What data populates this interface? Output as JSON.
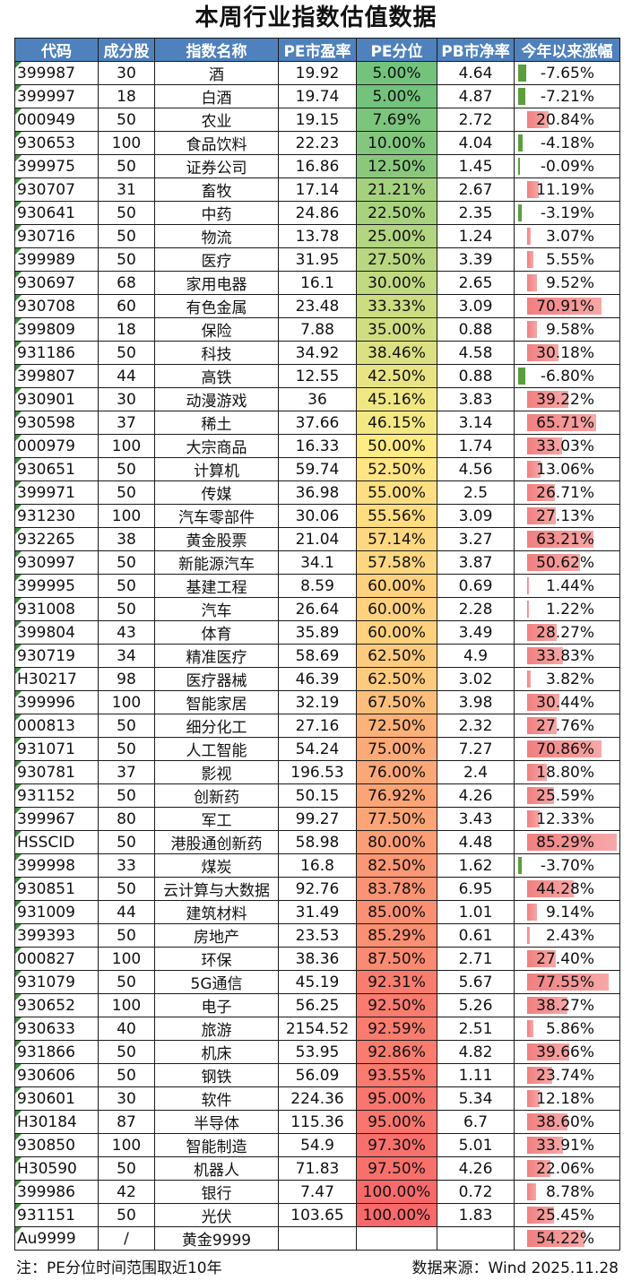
{
  "title": "本周行业指数估值数据",
  "headers": [
    "代码",
    "成分股",
    "指数名称",
    "PE市盈率",
    "PE分位",
    "PB市净率",
    "今年以来涨幅"
  ],
  "rows": [
    {
      "code": "399987",
      "count": "30",
      "name": "酒",
      "pe": "19.92",
      "pct": "5.00%",
      "pb": "4.64",
      "ytd": "-7.65%",
      "pct_value": 5.0,
      "ytd_value": -7.65
    },
    {
      "code": "399997",
      "count": "18",
      "name": "白酒",
      "pe": "19.74",
      "pct": "5.00%",
      "pb": "4.87",
      "ytd": "-7.21%",
      "pct_value": 5.0,
      "ytd_value": -7.21
    },
    {
      "code": "000949",
      "count": "50",
      "name": "农业",
      "pe": "19.15",
      "pct": "7.69%",
      "pb": "2.72",
      "ytd": "20.84%",
      "pct_value": 7.69,
      "ytd_value": 20.84
    },
    {
      "code": "930653",
      "count": "100",
      "name": "食品饮料",
      "pe": "22.23",
      "pct": "10.00%",
      "pb": "4.04",
      "ytd": "-4.18%",
      "pct_value": 10.0,
      "ytd_value": -4.18
    },
    {
      "code": "399975",
      "count": "50",
      "name": "证券公司",
      "pe": "16.86",
      "pct": "12.50%",
      "pb": "1.45",
      "ytd": "-0.09%",
      "pct_value": 12.5,
      "ytd_value": -0.09
    },
    {
      "code": "930707",
      "count": "31",
      "name": "畜牧",
      "pe": "17.14",
      "pct": "21.21%",
      "pb": "2.67",
      "ytd": "11.19%",
      "pct_value": 21.21,
      "ytd_value": 11.19
    },
    {
      "code": "930641",
      "count": "50",
      "name": "中药",
      "pe": "24.86",
      "pct": "22.50%",
      "pb": "2.35",
      "ytd": "-3.19%",
      "pct_value": 22.5,
      "ytd_value": -3.19
    },
    {
      "code": "930716",
      "count": "50",
      "name": "物流",
      "pe": "13.78",
      "pct": "25.00%",
      "pb": "1.24",
      "ytd": "3.07%",
      "pct_value": 25.0,
      "ytd_value": 3.07
    },
    {
      "code": "399989",
      "count": "50",
      "name": "医疗",
      "pe": "31.95",
      "pct": "27.50%",
      "pb": "3.39",
      "ytd": "5.55%",
      "pct_value": 27.5,
      "ytd_value": 5.55
    },
    {
      "code": "930697",
      "count": "68",
      "name": "家用电器",
      "pe": "16.1",
      "pct": "30.00%",
      "pb": "2.65",
      "ytd": "9.52%",
      "pct_value": 30.0,
      "ytd_value": 9.52
    },
    {
      "code": "930708",
      "count": "60",
      "name": "有色金属",
      "pe": "23.48",
      "pct": "33.33%",
      "pb": "3.09",
      "ytd": "70.91%",
      "pct_value": 33.33,
      "ytd_value": 70.91
    },
    {
      "code": "399809",
      "count": "18",
      "name": "保险",
      "pe": "7.88",
      "pct": "35.00%",
      "pb": "0.88",
      "ytd": "9.58%",
      "pct_value": 35.0,
      "ytd_value": 9.58
    },
    {
      "code": "931186",
      "count": "50",
      "name": "科技",
      "pe": "34.92",
      "pct": "38.46%",
      "pb": "4.58",
      "ytd": "30.18%",
      "pct_value": 38.46,
      "ytd_value": 30.18
    },
    {
      "code": "399807",
      "count": "44",
      "name": "高铁",
      "pe": "12.55",
      "pct": "42.50%",
      "pb": "0.88",
      "ytd": "-6.80%",
      "pct_value": 42.5,
      "ytd_value": -6.8
    },
    {
      "code": "930901",
      "count": "30",
      "name": "动漫游戏",
      "pe": "36",
      "pct": "45.16%",
      "pb": "3.83",
      "ytd": "39.22%",
      "pct_value": 45.16,
      "ytd_value": 39.22
    },
    {
      "code": "930598",
      "count": "37",
      "name": "稀土",
      "pe": "37.66",
      "pct": "46.15%",
      "pb": "3.14",
      "ytd": "65.71%",
      "pct_value": 46.15,
      "ytd_value": 65.71
    },
    {
      "code": "000979",
      "count": "100",
      "name": "大宗商品",
      "pe": "16.33",
      "pct": "50.00%",
      "pb": "1.74",
      "ytd": "33.03%",
      "pct_value": 50.0,
      "ytd_value": 33.03
    },
    {
      "code": "930651",
      "count": "50",
      "name": "计算机",
      "pe": "59.74",
      "pct": "52.50%",
      "pb": "4.56",
      "ytd": "13.06%",
      "pct_value": 52.5,
      "ytd_value": 13.06
    },
    {
      "code": "399971",
      "count": "50",
      "name": "传媒",
      "pe": "36.98",
      "pct": "55.00%",
      "pb": "2.5",
      "ytd": "26.71%",
      "pct_value": 55.0,
      "ytd_value": 26.71
    },
    {
      "code": "931230",
      "count": "100",
      "name": "汽车零部件",
      "pe": "30.06",
      "pct": "55.56%",
      "pb": "3.09",
      "ytd": "27.13%",
      "pct_value": 55.56,
      "ytd_value": 27.13
    },
    {
      "code": "932265",
      "count": "38",
      "name": "黄金股票",
      "pe": "21.04",
      "pct": "57.14%",
      "pb": "3.27",
      "ytd": "63.21%",
      "pct_value": 57.14,
      "ytd_value": 63.21
    },
    {
      "code": "930997",
      "count": "50",
      "name": "新能源汽车",
      "pe": "34.1",
      "pct": "57.58%",
      "pb": "3.87",
      "ytd": "50.62%",
      "pct_value": 57.58,
      "ytd_value": 50.62
    },
    {
      "code": "399995",
      "count": "50",
      "name": "基建工程",
      "pe": "8.59",
      "pct": "60.00%",
      "pb": "0.69",
      "ytd": "1.44%",
      "pct_value": 60.0,
      "ytd_value": 1.44
    },
    {
      "code": "931008",
      "count": "50",
      "name": "汽车",
      "pe": "26.64",
      "pct": "60.00%",
      "pb": "2.28",
      "ytd": "1.22%",
      "pct_value": 60.0,
      "ytd_value": 1.22
    },
    {
      "code": "399804",
      "count": "43",
      "name": "体育",
      "pe": "35.89",
      "pct": "60.00%",
      "pb": "3.49",
      "ytd": "28.27%",
      "pct_value": 60.0,
      "ytd_value": 28.27
    },
    {
      "code": "930719",
      "count": "34",
      "name": "精准医疗",
      "pe": "58.69",
      "pct": "62.50%",
      "pb": "4.9",
      "ytd": "33.83%",
      "pct_value": 62.5,
      "ytd_value": 33.83
    },
    {
      "code": "H30217",
      "count": "98",
      "name": "医疗器械",
      "pe": "46.39",
      "pct": "62.50%",
      "pb": "3.02",
      "ytd": "3.82%",
      "pct_value": 62.5,
      "ytd_value": 3.82
    },
    {
      "code": "399996",
      "count": "100",
      "name": "智能家居",
      "pe": "32.19",
      "pct": "67.50%",
      "pb": "3.98",
      "ytd": "30.44%",
      "pct_value": 67.5,
      "ytd_value": 30.44
    },
    {
      "code": "000813",
      "count": "50",
      "name": "细分化工",
      "pe": "27.16",
      "pct": "72.50%",
      "pb": "2.32",
      "ytd": "27.76%",
      "pct_value": 72.5,
      "ytd_value": 27.76
    },
    {
      "code": "931071",
      "count": "50",
      "name": "人工智能",
      "pe": "54.24",
      "pct": "75.00%",
      "pb": "7.27",
      "ytd": "70.86%",
      "pct_value": 75.0,
      "ytd_value": 70.86
    },
    {
      "code": "930781",
      "count": "37",
      "name": "影视",
      "pe": "196.53",
      "pct": "76.00%",
      "pb": "2.4",
      "ytd": "18.80%",
      "pct_value": 76.0,
      "ytd_value": 18.8
    },
    {
      "code": "931152",
      "count": "50",
      "name": "创新药",
      "pe": "50.15",
      "pct": "76.92%",
      "pb": "4.26",
      "ytd": "25.59%",
      "pct_value": 76.92,
      "ytd_value": 25.59
    },
    {
      "code": "399967",
      "count": "80",
      "name": "军工",
      "pe": "99.27",
      "pct": "77.50%",
      "pb": "3.43",
      "ytd": "12.33%",
      "pct_value": 77.5,
      "ytd_value": 12.33
    },
    {
      "code": "HSSCID",
      "count": "50",
      "name": "港股通创新药",
      "pe": "58.98",
      "pct": "80.00%",
      "pb": "4.48",
      "ytd": "85.29%",
      "pct_value": 80.0,
      "ytd_value": 85.29
    },
    {
      "code": "399998",
      "count": "33",
      "name": "煤炭",
      "pe": "16.8",
      "pct": "82.50%",
      "pb": "1.62",
      "ytd": "-3.70%",
      "pct_value": 82.5,
      "ytd_value": -3.7
    },
    {
      "code": "930851",
      "count": "50",
      "name": "云计算与大数据",
      "pe": "92.76",
      "pct": "83.78%",
      "pb": "6.95",
      "ytd": "44.28%",
      "pct_value": 83.78,
      "ytd_value": 44.28
    },
    {
      "code": "931009",
      "count": "44",
      "name": "建筑材料",
      "pe": "31.49",
      "pct": "85.00%",
      "pb": "1.01",
      "ytd": "9.14%",
      "pct_value": 85.0,
      "ytd_value": 9.14
    },
    {
      "code": "399393",
      "count": "50",
      "name": "房地产",
      "pe": "23.53",
      "pct": "85.29%",
      "pb": "0.61",
      "ytd": "2.43%",
      "pct_value": 85.29,
      "ytd_value": 2.43
    },
    {
      "code": "000827",
      "count": "100",
      "name": "环保",
      "pe": "38.36",
      "pct": "87.50%",
      "pb": "2.71",
      "ytd": "27.40%",
      "pct_value": 87.5,
      "ytd_value": 27.4
    },
    {
      "code": "931079",
      "count": "50",
      "name": "5G通信",
      "pe": "45.19",
      "pct": "92.31%",
      "pb": "5.67",
      "ytd": "77.55%",
      "pct_value": 92.31,
      "ytd_value": 77.55
    },
    {
      "code": "930652",
      "count": "100",
      "name": "电子",
      "pe": "56.25",
      "pct": "92.50%",
      "pb": "5.26",
      "ytd": "38.27%",
      "pct_value": 92.5,
      "ytd_value": 38.27
    },
    {
      "code": "930633",
      "count": "40",
      "name": "旅游",
      "pe": "2154.52",
      "pct": "92.59%",
      "pb": "2.51",
      "ytd": "5.86%",
      "pct_value": 92.59,
      "ytd_value": 5.86
    },
    {
      "code": "931866",
      "count": "50",
      "name": "机床",
      "pe": "53.95",
      "pct": "92.86%",
      "pb": "4.82",
      "ytd": "39.66%",
      "pct_value": 92.86,
      "ytd_value": 39.66
    },
    {
      "code": "930606",
      "count": "50",
      "name": "钢铁",
      "pe": "56.09",
      "pct": "93.55%",
      "pb": "1.11",
      "ytd": "23.74%",
      "pct_value": 93.55,
      "ytd_value": 23.74
    },
    {
      "code": "930601",
      "count": "30",
      "name": "软件",
      "pe": "224.36",
      "pct": "95.00%",
      "pb": "5.34",
      "ytd": "12.18%",
      "pct_value": 95.0,
      "ytd_value": 12.18
    },
    {
      "code": "H30184",
      "count": "87",
      "name": "半导体",
      "pe": "115.36",
      "pct": "95.00%",
      "pb": "6.7",
      "ytd": "38.60%",
      "pct_value": 95.0,
      "ytd_value": 38.6
    },
    {
      "code": "930850",
      "count": "100",
      "name": "智能制造",
      "pe": "54.9",
      "pct": "97.30%",
      "pb": "5.01",
      "ytd": "33.91%",
      "pct_value": 97.3,
      "ytd_value": 33.91
    },
    {
      "code": "H30590",
      "count": "50",
      "name": "机器人",
      "pe": "71.83",
      "pct": "97.50%",
      "pb": "4.26",
      "ytd": "22.06%",
      "pct_value": 97.5,
      "ytd_value": 22.06
    },
    {
      "code": "399986",
      "count": "42",
      "name": "银行",
      "pe": "7.47",
      "pct": "100.00%",
      "pb": "0.72",
      "ytd": "8.78%",
      "pct_value": 100.0,
      "ytd_value": 8.78
    },
    {
      "code": "931151",
      "count": "50",
      "name": "光伏",
      "pe": "103.65",
      "pct": "100.00%",
      "pb": "1.83",
      "ytd": "25.45%",
      "pct_value": 100.0,
      "ytd_value": 25.45
    },
    {
      "code": "Au9999",
      "count": "/",
      "name": "黄金9999",
      "pe": "",
      "pct": "",
      "pb": "",
      "ytd": "54.22%",
      "pct_value": null,
      "ytd_value": 54.22
    }
  ],
  "footer": {
    "note": "注：PE分位时间范围取近10年",
    "source": "数据来源：Wind 2025.11.28"
  },
  "colors": {
    "header_bg": "#4f81bd",
    "pct_low": "#63be7b",
    "pct_mid": "#ffeb84",
    "pct_high": "#f8696b",
    "bar_positive": "#f08080",
    "bar_negative": "#5a9e3e"
  }
}
